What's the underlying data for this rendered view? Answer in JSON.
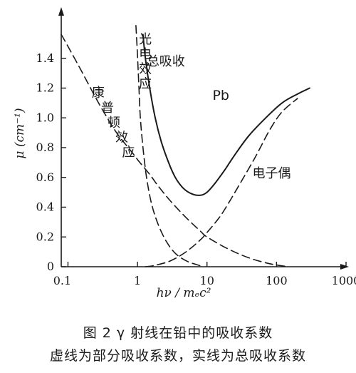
{
  "chart_data": {
    "type": "line",
    "xscale": "log",
    "xlim": [
      0.08,
      1000
    ],
    "ylim": [
      0,
      1.6
    ],
    "xticks": [
      {
        "value": 0.1,
        "label": "0.1"
      },
      {
        "value": 1,
        "label": "1"
      },
      {
        "value": 10,
        "label": "10"
      },
      {
        "value": 100,
        "label": "100"
      },
      {
        "value": 1000,
        "label": "1000"
      }
    ],
    "yticks": [
      {
        "value": 0,
        "label": "0"
      },
      {
        "value": 0.2,
        "label": "0.2"
      },
      {
        "value": 0.4,
        "label": "0.4"
      },
      {
        "value": 0.6,
        "label": "0.6"
      },
      {
        "value": 0.8,
        "label": "0.8"
      },
      {
        "value": 1.0,
        "label": "1.0"
      },
      {
        "value": 1.2,
        "label": "1.2"
      },
      {
        "value": 1.4,
        "label": "1.4"
      }
    ],
    "xlabel": "hν / mₑc²",
    "ylabel": "μ (cm⁻¹)",
    "material_label": "Pb",
    "series": [
      {
        "name": "总吸收",
        "style": "solid",
        "points": [
          [
            1.2,
            1.56
          ],
          [
            1.3,
            1.4
          ],
          [
            1.5,
            1.2
          ],
          [
            1.8,
            1.0
          ],
          [
            2.2,
            0.84
          ],
          [
            2.8,
            0.7
          ],
          [
            3.5,
            0.6
          ],
          [
            4.5,
            0.53
          ],
          [
            6,
            0.49
          ],
          [
            8,
            0.48
          ],
          [
            10,
            0.5
          ],
          [
            13,
            0.56
          ],
          [
            18,
            0.65
          ],
          [
            25,
            0.75
          ],
          [
            40,
            0.88
          ],
          [
            70,
            1.0
          ],
          [
            120,
            1.1
          ],
          [
            200,
            1.16
          ],
          [
            300,
            1.2
          ]
        ]
      },
      {
        "name": "光电效应",
        "style": "dashed",
        "points": [
          [
            0.95,
            1.62
          ],
          [
            1.0,
            1.42
          ],
          [
            1.05,
            1.2
          ],
          [
            1.1,
            1.0
          ],
          [
            1.2,
            0.8
          ],
          [
            1.35,
            0.6
          ],
          [
            1.6,
            0.42
          ],
          [
            2.0,
            0.28
          ],
          [
            2.6,
            0.17
          ],
          [
            3.5,
            0.09
          ],
          [
            5,
            0.04
          ],
          [
            7,
            0.015
          ],
          [
            9,
            0.0
          ]
        ]
      },
      {
        "name": "康普顿效应",
        "style": "dashed",
        "points": [
          [
            0.08,
            1.56
          ],
          [
            0.1,
            1.48
          ],
          [
            0.15,
            1.33
          ],
          [
            0.2,
            1.22
          ],
          [
            0.3,
            1.07
          ],
          [
            0.5,
            0.9
          ],
          [
            0.8,
            0.78
          ],
          [
            1,
            0.72
          ],
          [
            1.5,
            0.62
          ],
          [
            2,
            0.54
          ],
          [
            3,
            0.44
          ],
          [
            5,
            0.33
          ],
          [
            8,
            0.24
          ],
          [
            10,
            0.2
          ],
          [
            20,
            0.12
          ],
          [
            40,
            0.06
          ],
          [
            80,
            0.02
          ],
          [
            150,
            0.0
          ]
        ]
      },
      {
        "name": "电子偶",
        "style": "dashed",
        "points": [
          [
            1.3,
            0.0
          ],
          [
            1.6,
            0.005
          ],
          [
            2,
            0.015
          ],
          [
            3,
            0.04
          ],
          [
            5,
            0.1
          ],
          [
            8,
            0.18
          ],
          [
            10,
            0.23
          ],
          [
            15,
            0.33
          ],
          [
            20,
            0.42
          ],
          [
            30,
            0.56
          ],
          [
            50,
            0.74
          ],
          [
            80,
            0.92
          ],
          [
            120,
            1.04
          ],
          [
            200,
            1.13
          ]
        ]
      }
    ],
    "annotations": [
      {
        "text": "光",
        "x": 1.05,
        "y": 1.5
      },
      {
        "text": "电",
        "x": 1.05,
        "y": 1.4
      },
      {
        "text": "效",
        "x": 1.05,
        "y": 1.3
      },
      {
        "text": "应",
        "x": 1.05,
        "y": 1.2
      },
      {
        "text": "总吸收",
        "x": 1.35,
        "y": 1.35
      },
      {
        "text": "康",
        "x": 0.22,
        "y": 1.14
      },
      {
        "text": "普",
        "x": 0.3,
        "y": 1.04
      },
      {
        "text": "顿",
        "x": 0.37,
        "y": 0.94
      },
      {
        "text": "效",
        "x": 0.48,
        "y": 0.84
      },
      {
        "text": "应",
        "x": 0.6,
        "y": 0.74
      },
      {
        "text": "Pb",
        "x": 12,
        "y": 1.12
      },
      {
        "text": "电子偶",
        "x": 45,
        "y": 0.6
      }
    ]
  },
  "caption": {
    "line1": "图 2 γ 射线在铅中的吸收系数",
    "line2": "虚线为部分吸收系数，实线为总吸收系数"
  }
}
